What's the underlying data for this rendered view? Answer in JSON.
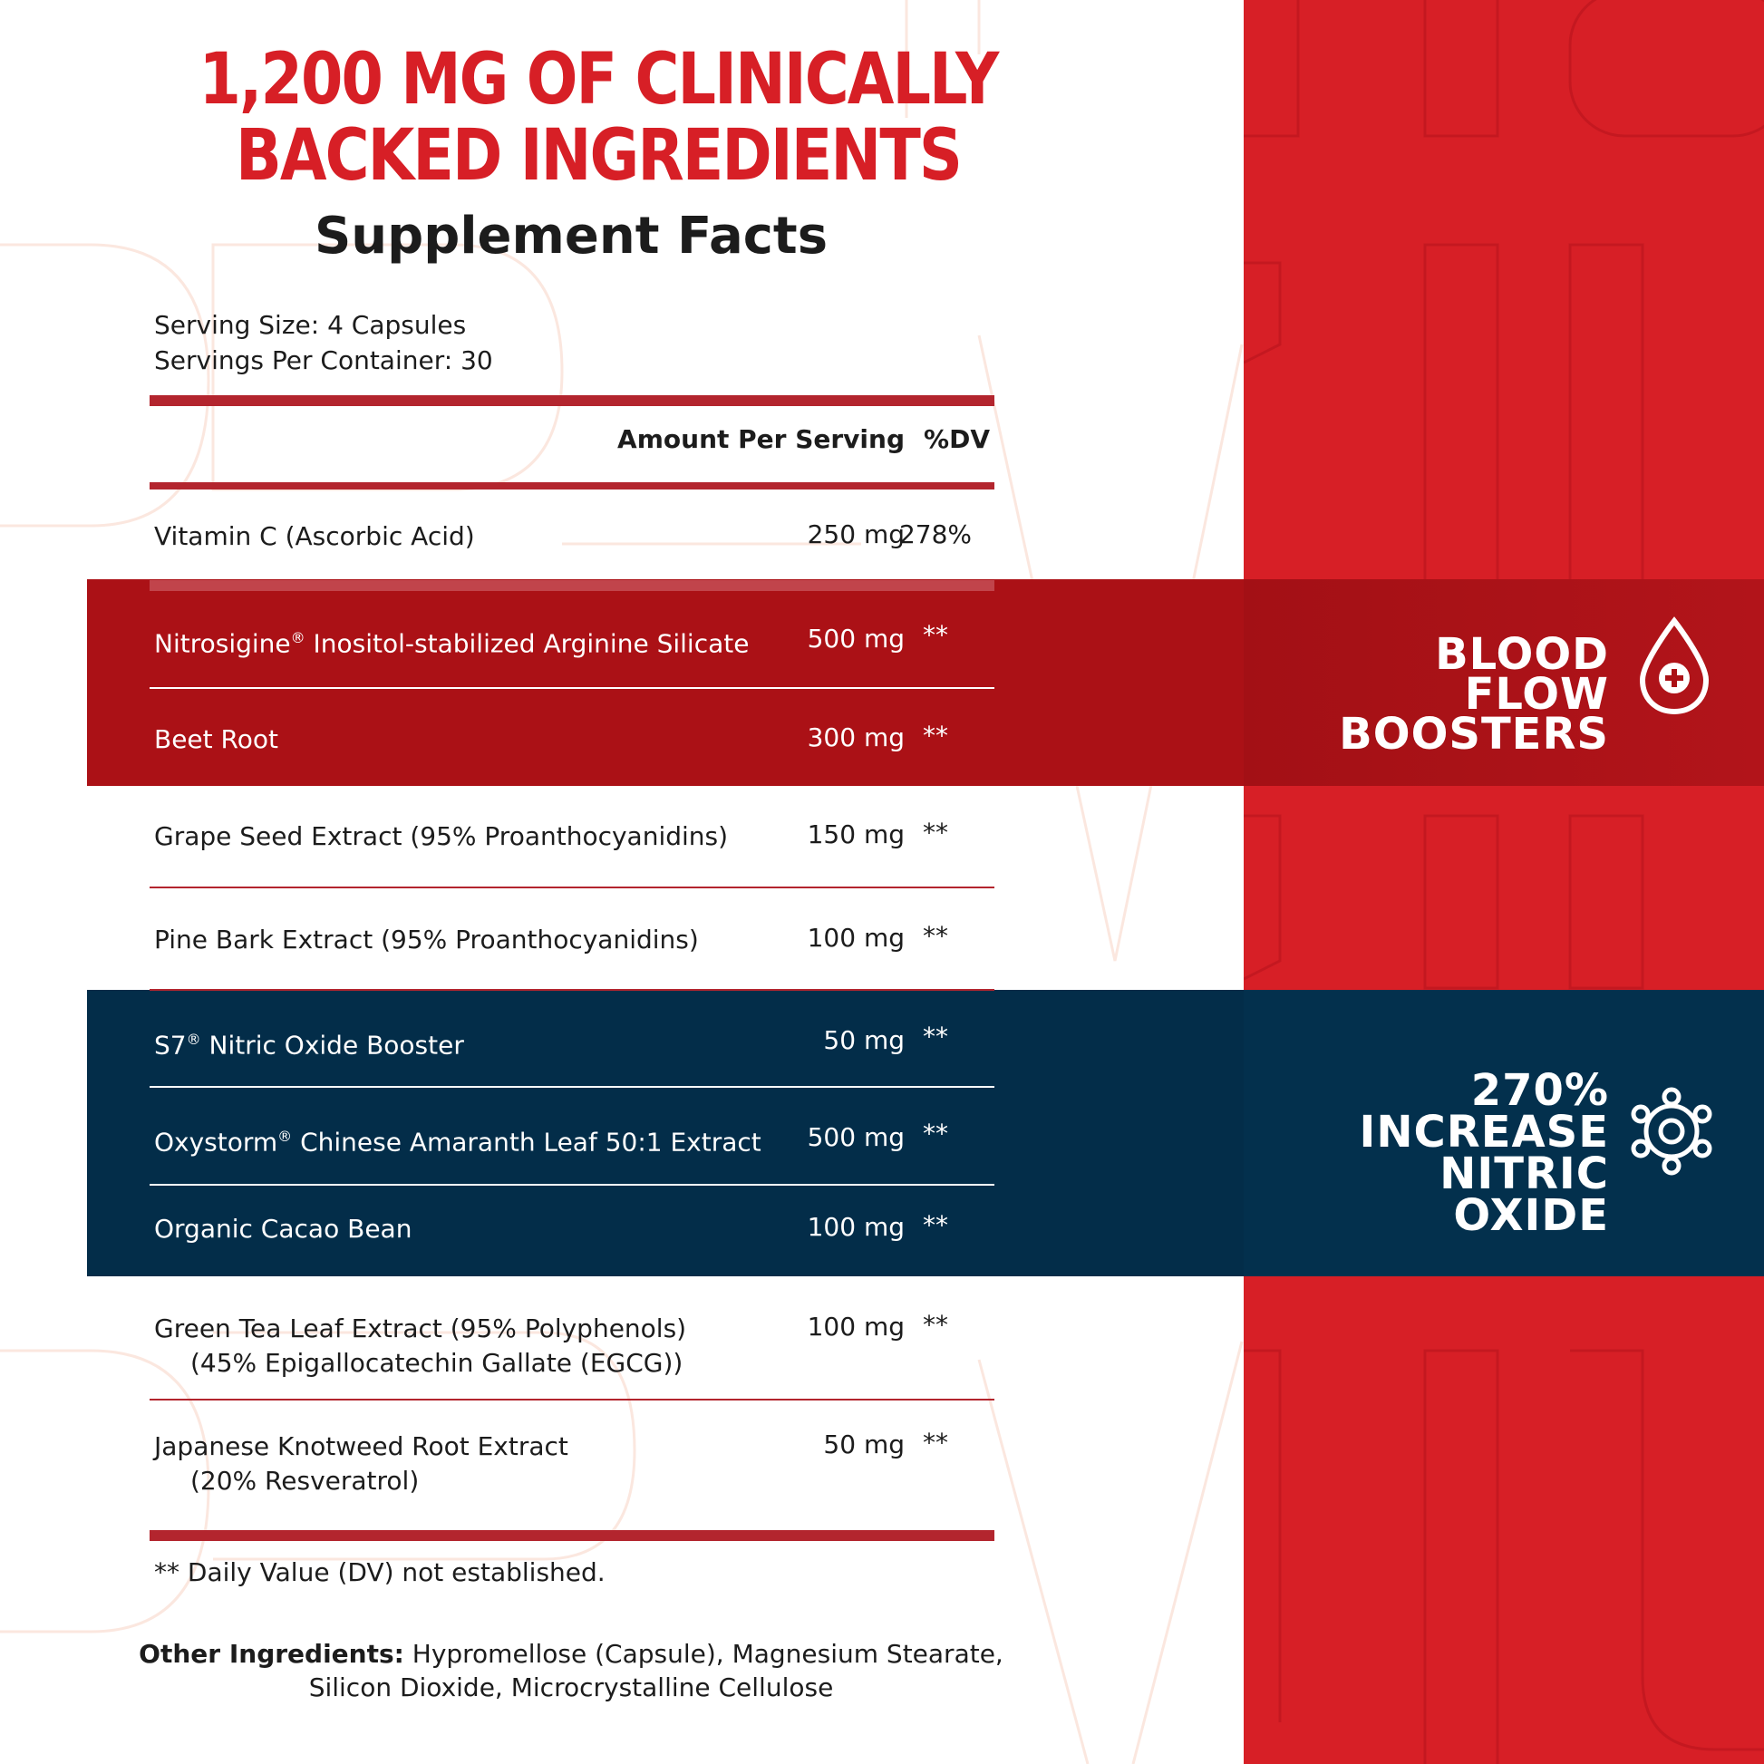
{
  "headline": {
    "line1": "1,200 MG OF CLINICALLY",
    "line2": "BACKED INGREDIENTS"
  },
  "facts_title": "Supplement Facts",
  "serving_size": "Serving Size: 4 Capsules",
  "servings_per_container": "Servings Per Container: 30",
  "table_header": {
    "amount": "Amount Per Serving",
    "dv": "%DV"
  },
  "rows": [
    {
      "name": "Vitamin C (Ascorbic Acid)",
      "amount": "250 mg",
      "dv": "278%"
    },
    {
      "name": "Nitrosigine",
      "reg": "®",
      "name_rest": " Inositol-stabilized Arginine Silicate",
      "amount": "500 mg",
      "dv": "**"
    },
    {
      "name": "Beet Root",
      "amount": "300 mg",
      "dv": "**"
    },
    {
      "name": "Grape Seed Extract (95% Proanthocyanidins)",
      "amount": "150 mg",
      "dv": "**"
    },
    {
      "name": "Pine Bark Extract (95% Proanthocyanidins)",
      "amount": "100 mg",
      "dv": "**"
    },
    {
      "name": "S7",
      "reg": "®",
      "name_rest": " Nitric Oxide Booster",
      "amount": "50 mg",
      "dv": "**"
    },
    {
      "name": "Oxystorm",
      "reg": "®",
      "name_rest": " Chinese Amaranth Leaf 50:1 Extract",
      "amount": "500 mg",
      "dv": "**"
    },
    {
      "name": "Organic Cacao Bean",
      "amount": "100 mg",
      "dv": "**"
    },
    {
      "name": "Green Tea Leaf Extract (95% Polyphenols)",
      "name_line2": "(45% Epigallocatechin Gallate (EGCG))",
      "amount": "100 mg",
      "dv": "**"
    },
    {
      "name": "Japanese Knotweed Root Extract",
      "name_line2": "(20% Resveratrol)",
      "amount": "50 mg",
      "dv": "**"
    }
  ],
  "dv_note": "** Daily Value (DV) not established.",
  "other_ingredients": {
    "label": "Other Ingredients:",
    "text": " Hypromellose (Capsule), Magnesium Stearate, Silicon Dioxide, Microcrystalline Cellulose"
  },
  "callouts": {
    "blood_flow": {
      "line1": "BLOOD FLOW",
      "line2": "BOOSTERS",
      "icon": "blood-drop-plus-icon"
    },
    "nitric_oxide": {
      "line1": "270%",
      "line2": "INCREASE",
      "line3": "NITRIC OXIDE",
      "icon": "molecule-icon"
    }
  },
  "colors": {
    "red": "#d71f26",
    "dark_red": "#ab1116",
    "navy": "#032d49",
    "rule": "#b3252e"
  }
}
